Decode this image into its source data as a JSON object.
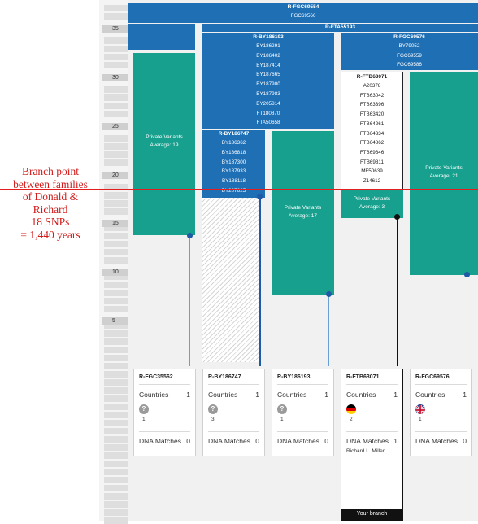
{
  "annotation": {
    "lines": [
      "Branch point",
      "between families",
      "of Donald &",
      "Richard",
      "18 SNPs",
      "= 1,440 years"
    ],
    "color": "#d11b1b"
  },
  "ruler": {
    "ticks": [
      "35",
      "30",
      "25",
      "20",
      "15",
      "10",
      "5"
    ]
  },
  "colors": {
    "blue": "#1f6fb5",
    "teal": "#17a08e",
    "your_branch": "#111111",
    "annotation_line": "#e41e1e"
  },
  "top_node": {
    "title": "R-FGC69554",
    "snps": [
      "FGC69566"
    ]
  },
  "subclade_header": "R-FTA55193",
  "nodes": {
    "by186193": {
      "title": "R-BY186193",
      "snps": [
        "BY186291",
        "BY186402",
        "BY187414",
        "BY187665",
        "BY187900",
        "BY187983",
        "BY205814",
        "FT180870",
        "FTA50658"
      ]
    },
    "fgc69576": {
      "title": "R-FGC69576",
      "snps": [
        "BY79052",
        "FGC69559",
        "FGC69586"
      ]
    },
    "by186747": {
      "title": "R-BY186747",
      "snps": [
        "BY186362",
        "BY186818",
        "BY187300",
        "BY187933",
        "BY188118",
        "BY207625"
      ]
    },
    "ftb63071": {
      "title": "R-FTB63071",
      "snps": [
        "A20378",
        "FTB63042",
        "FTB63396",
        "FTB63420",
        "FTB64261",
        "FTB64334",
        "FTB64862",
        "FTB69646",
        "FTB69811",
        "MF50639",
        "Z14612"
      ]
    }
  },
  "private_variants": [
    {
      "label": "Private Variants",
      "average": "Average: 19"
    },
    {
      "label": "Private Variants",
      "average": "Average: 17"
    },
    {
      "label": "Private Variants",
      "average": "Average: 3"
    },
    {
      "label": "Private Variants",
      "average": "Average: 21"
    }
  ],
  "cards": [
    {
      "title": "R-FGC35562",
      "countries_label": "Countries",
      "countries_count": "1",
      "flag": "unknown",
      "flag_count": "1",
      "dna_label": "DNA Matches",
      "dna_count": "0",
      "match_name": ""
    },
    {
      "title": "R-BY186747",
      "countries_label": "Countries",
      "countries_count": "1",
      "flag": "unknown",
      "flag_count": "3",
      "dna_label": "DNA Matches",
      "dna_count": "0",
      "match_name": ""
    },
    {
      "title": "R-BY186193",
      "countries_label": "Countries",
      "countries_count": "1",
      "flag": "unknown",
      "flag_count": "1",
      "dna_label": "DNA Matches",
      "dna_count": "0",
      "match_name": ""
    },
    {
      "title": "R-FTB63071",
      "countries_label": "Countries",
      "countries_count": "1",
      "flag": "germany",
      "flag_count": "2",
      "dna_label": "DNA Matches",
      "dna_count": "1",
      "match_name": "Richard L. Miller"
    },
    {
      "title": "R-FGC69576",
      "countries_label": "Countries",
      "countries_count": "1",
      "flag": "united-kingdom",
      "flag_count": "1",
      "dna_label": "DNA Matches",
      "dna_count": "0",
      "match_name": ""
    }
  ],
  "unknown_flag_glyph": "?",
  "your_branch_label": "Your branch"
}
